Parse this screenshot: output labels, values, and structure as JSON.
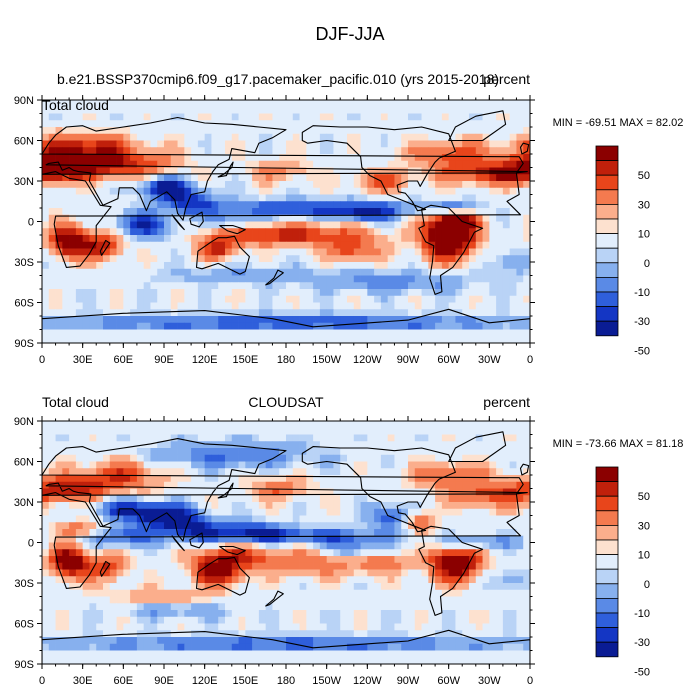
{
  "figure": {
    "title": "DJF-JJA"
  },
  "chart_data": [
    {
      "type": "heatmap",
      "title": "b.e21.BSSP370cmip6.f09_g17.pacemaker_pacific.010 (yrs 2015-2018)",
      "left_string": "Total cloud",
      "center_string": "",
      "right_string": "percent",
      "stats": "MIN = -69.51 MAX =  82.02",
      "x_ticks": [
        "0",
        "30E",
        "60E",
        "90E",
        "120E",
        "150E",
        "180",
        "150W",
        "120W",
        "90W",
        "60W",
        "30W",
        "0"
      ],
      "y_ticks": [
        "90N",
        "60N",
        "30N",
        "0",
        "30S",
        "60S",
        "90S"
      ],
      "xlim": [
        0,
        360
      ],
      "ylim": [
        -90,
        90
      ],
      "colorbar_labels": [
        "50",
        "30",
        "10",
        "0",
        "-10",
        "-30",
        "-50"
      ],
      "colorbar_colors": [
        "#8b0000",
        "#c0200b",
        "#e8451b",
        "#f47a4f",
        "#fbae8c",
        "#fde1cf",
        "#e2eefc",
        "#b9d3f6",
        "#87b0ee",
        "#5a8ae6",
        "#2f5fdb",
        "#1436c4",
        "#0a1c94"
      ],
      "min": -69.51,
      "max": 82.02
    },
    {
      "type": "heatmap",
      "title": "",
      "left_string": "Total cloud",
      "center_string": "CLOUDSAT",
      "right_string": "percent",
      "stats": "MIN = -73.66 MAX =  81.18",
      "x_ticks": [
        "0",
        "30E",
        "60E",
        "90E",
        "120E",
        "150E",
        "180",
        "150W",
        "120W",
        "90W",
        "60W",
        "30W",
        "0"
      ],
      "y_ticks": [
        "90N",
        "60N",
        "30N",
        "0",
        "30S",
        "60S",
        "90S"
      ],
      "xlim": [
        0,
        360
      ],
      "ylim": [
        -90,
        90
      ],
      "colorbar_labels": [
        "50",
        "30",
        "10",
        "0",
        "-10",
        "-30",
        "-50"
      ],
      "colorbar_colors": [
        "#8b0000",
        "#c0200b",
        "#e8451b",
        "#f47a4f",
        "#fbae8c",
        "#fde1cf",
        "#e2eefc",
        "#b9d3f6",
        "#87b0ee",
        "#5a8ae6",
        "#2f5fdb",
        "#1436c4",
        "#0a1c94"
      ],
      "min": -73.66,
      "max": 81.18
    }
  ]
}
